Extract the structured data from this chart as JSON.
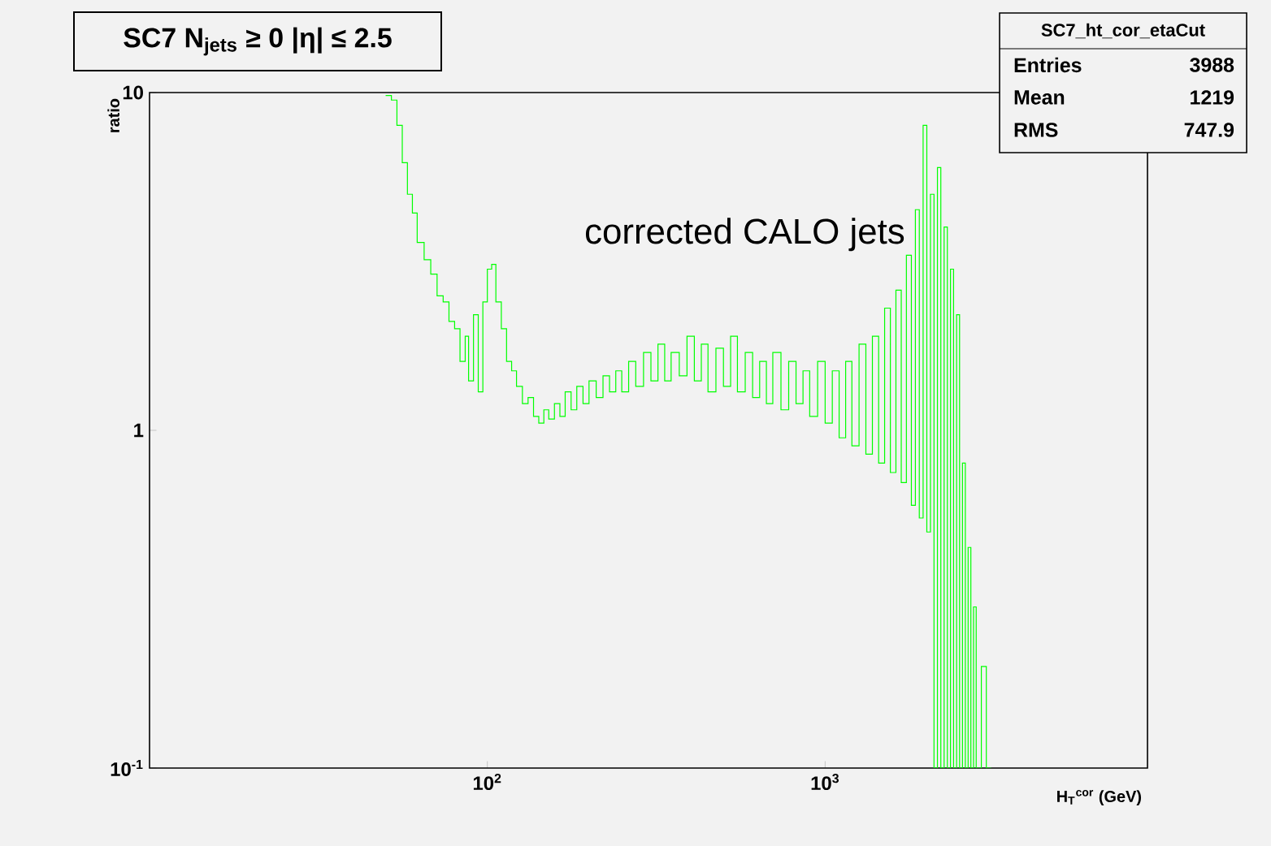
{
  "chart_data": {
    "type": "step",
    "title": "SC7 N$_{jets}$ ≥ 0 |η| ≤ 2.5",
    "xlabel": "H$_{T}$$^{cor}$ (GeV)",
    "ylabel": "ratio",
    "log": "xy",
    "color": "#00ff00",
    "xlim": [
      10,
      9000
    ],
    "ylim": [
      0.1,
      10
    ],
    "xticks": [
      {
        "value": 100,
        "label": "10$^{2}$"
      },
      {
        "value": 1000,
        "label": "10$^{3}$"
      }
    ],
    "yticks": [
      {
        "value": 0.1,
        "label": "10$^{-1}$"
      },
      1,
      10
    ],
    "annotations": [
      "corrected CALO jets",
      "SC7_ht_cor_etaCut",
      "Entries",
      "3988",
      "Mean",
      "1219",
      "RMS",
      "747.9"
    ],
    "x": [
      50,
      52,
      54,
      56,
      58,
      60,
      62,
      65,
      68,
      71,
      74,
      77,
      80,
      83,
      86,
      88,
      91,
      94,
      97,
      100,
      103,
      106,
      110,
      114,
      118,
      122,
      127,
      132,
      137,
      142,
      147,
      152,
      158,
      164,
      170,
      177,
      184,
      192,
      200,
      210,
      220,
      230,
      240,
      250,
      262,
      275,
      290,
      305,
      320,
      335,
      350,
      370,
      390,
      410,
      430,
      450,
      475,
      500,
      525,
      550,
      580,
      610,
      640,
      670,
      700,
      740,
      780,
      820,
      860,
      900,
      950,
      1000,
      1050,
      1100,
      1150,
      1200,
      1260,
      1320,
      1380,
      1440,
      1500,
      1560,
      1620,
      1680,
      1740,
      1800,
      1850,
      1900,
      1950,
      2000,
      2050,
      2100,
      2150,
      2200,
      2250,
      2300,
      2350,
      2400,
      2450,
      2500,
      2550,
      2600,
      2650,
      2700,
      2750,
      2800,
      2900,
      3000,
      3100
    ],
    "values": [
      9.8,
      9.5,
      8,
      6.2,
      5,
      4.4,
      3.6,
      3.2,
      2.9,
      2.5,
      2.4,
      2.1,
      2.0,
      1.6,
      1.9,
      1.4,
      2.2,
      1.3,
      2.4,
      3.0,
      3.1,
      2.4,
      2.0,
      1.6,
      1.5,
      1.35,
      1.2,
      1.25,
      1.1,
      1.05,
      1.15,
      1.08,
      1.2,
      1.1,
      1.3,
      1.15,
      1.35,
      1.2,
      1.4,
      1.25,
      1.45,
      1.3,
      1.5,
      1.3,
      1.6,
      1.35,
      1.7,
      1.4,
      1.8,
      1.4,
      1.7,
      1.45,
      1.9,
      1.4,
      1.8,
      1.3,
      1.75,
      1.35,
      1.9,
      1.3,
      1.7,
      1.25,
      1.6,
      1.2,
      1.7,
      1.15,
      1.6,
      1.2,
      1.5,
      1.1,
      1.6,
      1.05,
      1.5,
      0.95,
      1.6,
      0.9,
      1.8,
      0.85,
      1.9,
      0.8,
      2.3,
      0.75,
      2.6,
      0.7,
      3.3,
      0.6,
      4.5,
      0.55,
      8.0,
      0.5,
      5.0,
      0.1,
      6.0,
      0.1,
      4.0,
      0.1,
      3.0,
      0.1,
      2.2,
      0.1,
      0.8,
      0.1,
      0.45,
      0.1,
      0.3,
      0.1,
      0.2,
      0.1,
      0.1
    ]
  }
}
